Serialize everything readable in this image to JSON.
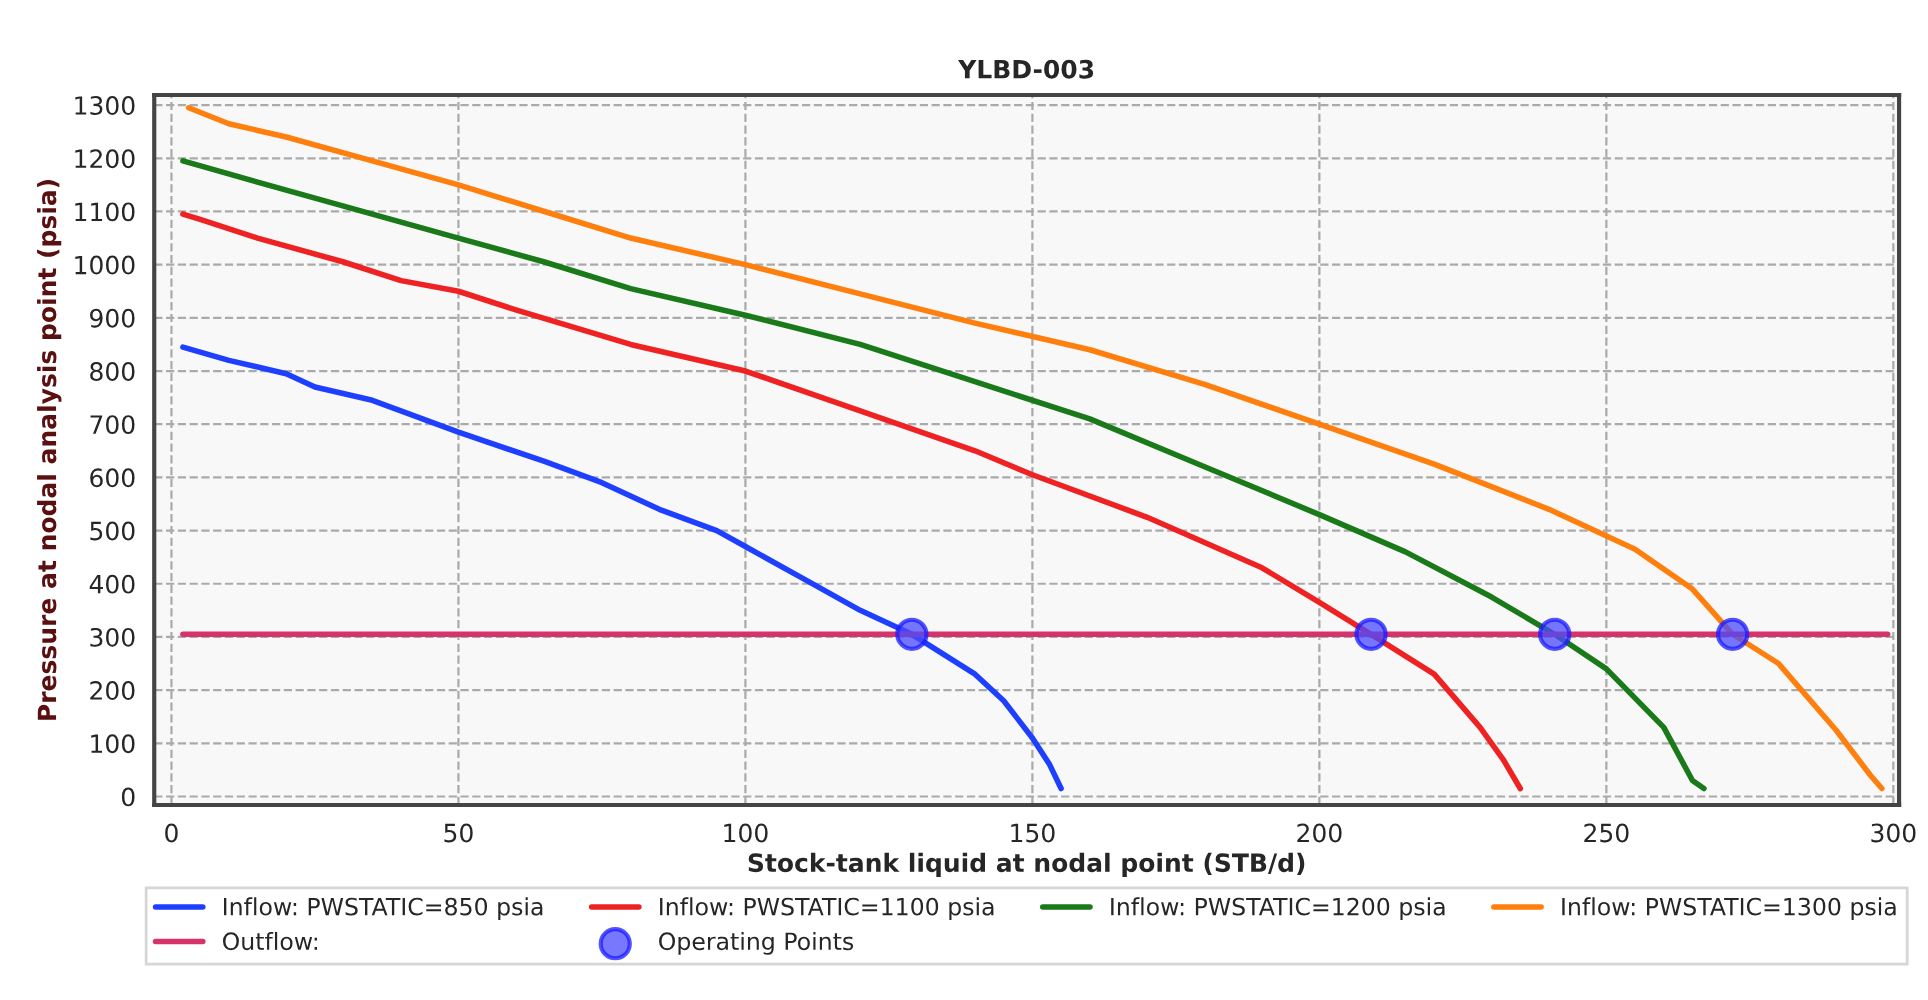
{
  "chart_data": {
    "type": "line",
    "title": "YLBD-003",
    "xlabel": "Stock-tank liquid at nodal point (STB/d)",
    "ylabel": "Pressure at nodal analysis point (psia)",
    "xlim": [
      -3,
      301
    ],
    "ylim": [
      -16,
      1319
    ],
    "xticks": [
      0,
      50,
      100,
      150,
      200,
      250,
      300
    ],
    "yticks": [
      0,
      100,
      200,
      300,
      400,
      500,
      600,
      700,
      800,
      900,
      1000,
      1100,
      1200,
      1300
    ],
    "grid": true,
    "legend": "bottom",
    "marker": "none",
    "line_style": "solid",
    "series": [
      {
        "name": "Inflow: PWSTATIC=850 psia",
        "color": "#1f3fff",
        "x": [
          2,
          10,
          20,
          25,
          35,
          50,
          65,
          75,
          85,
          95,
          100,
          110,
          120,
          129,
          140,
          145,
          150,
          153,
          155
        ],
        "values": [
          845,
          820,
          795,
          770,
          745,
          685,
          630,
          590,
          540,
          500,
          470,
          410,
          350,
          305,
          230,
          180,
          110,
          60,
          15
        ]
      },
      {
        "name": "Inflow: PWSTATIC=1100 psia",
        "color": "#ee2222",
        "x": [
          2,
          5,
          15,
          30,
          40,
          50,
          60,
          80,
          100,
          120,
          140,
          150,
          170,
          190,
          200,
          209,
          220,
          228,
          232,
          235
        ],
        "values": [
          1095,
          1085,
          1050,
          1005,
          970,
          950,
          915,
          850,
          800,
          725,
          650,
          605,
          525,
          430,
          365,
          305,
          230,
          130,
          70,
          15
        ]
      },
      {
        "name": "Inflow: PWSTATIC=1200 psia",
        "color": "#1a7a1a",
        "x": [
          2,
          20,
          35,
          50,
          65,
          80,
          100,
          120,
          140,
          160,
          180,
          200,
          215,
          230,
          241,
          250,
          260,
          265,
          267
        ],
        "values": [
          1195,
          1140,
          1095,
          1050,
          1005,
          955,
          905,
          850,
          780,
          710,
          620,
          530,
          460,
          375,
          305,
          240,
          130,
          30,
          15
        ]
      },
      {
        "name": "Inflow: PWSTATIC=1300 psia",
        "color": "#ff7f0e",
        "x": [
          3,
          10,
          20,
          35,
          50,
          65,
          80,
          100,
          120,
          140,
          160,
          180,
          200,
          220,
          240,
          255,
          265,
          272,
          280,
          290,
          296,
          298
        ],
        "values": [
          1295,
          1265,
          1240,
          1195,
          1150,
          1100,
          1050,
          1000,
          945,
          890,
          840,
          775,
          700,
          625,
          540,
          465,
          390,
          305,
          250,
          125,
          40,
          15
        ]
      },
      {
        "name": "Outflow:",
        "color": "#d6336c",
        "x": [
          2,
          299
        ],
        "values": [
          305,
          305
        ]
      },
      {
        "name": "Operating Points",
        "type": "scatter",
        "marker": "circle",
        "color": "#4a4aff",
        "x": [
          129,
          209,
          241,
          272
        ],
        "values": [
          305,
          305,
          305,
          305
        ]
      }
    ]
  }
}
